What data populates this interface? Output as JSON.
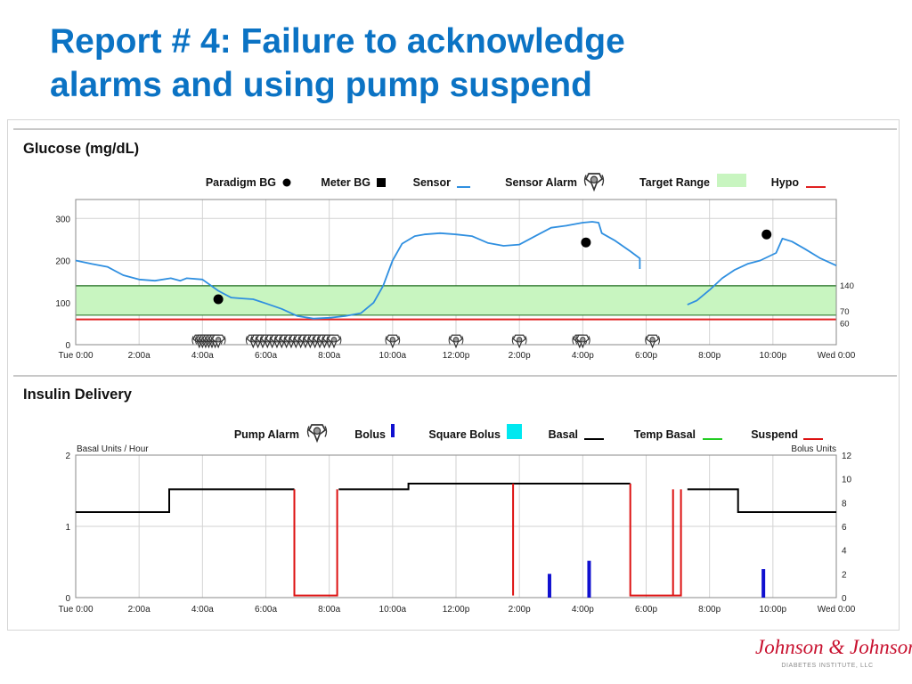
{
  "slide": {
    "title_line1": "Report # 4: Failure to acknowledge",
    "title_line2": "alarms and using pump suspend"
  },
  "logo": {
    "text": "Johnson & Johnson",
    "subtitle": "DIABETES INSTITUTE, LLC"
  },
  "colors": {
    "title": "#0b73c4",
    "sensor": "#2f8fe0",
    "target_range": "#c8f5c0",
    "hypo": "#e02020",
    "bolus": "#1010d0",
    "square_bolus": "#00e8f0",
    "basal": "#000000",
    "temp_basal": "#22cc22",
    "suspend": "#dd1111",
    "logo": "#c8102e"
  },
  "chart_data": [
    {
      "type": "line",
      "title": "Glucose (mg/dL)",
      "legend": {
        "placement": "top",
        "entries": [
          {
            "label": "Paradigm BG",
            "symbol": "circle"
          },
          {
            "label": "Meter BG",
            "symbol": "square"
          },
          {
            "label": "Sensor",
            "symbol": "line"
          },
          {
            "label": "Sensor Alarm",
            "symbol": "alarm-icon"
          },
          {
            "label": "Target Range",
            "symbol": "box"
          },
          {
            "label": "Hypo",
            "symbol": "line"
          }
        ]
      },
      "x_unit": "hours since Tue 0:00",
      "xlim": [
        0,
        24
      ],
      "x_ticks": [
        {
          "x": 0,
          "label": "Tue 0:00"
        },
        {
          "x": 2,
          "label": "2:00a"
        },
        {
          "x": 4,
          "label": "4:00a"
        },
        {
          "x": 6,
          "label": "6:00a"
        },
        {
          "x": 8,
          "label": "8:00a"
        },
        {
          "x": 10,
          "label": "10:00a"
        },
        {
          "x": 12,
          "label": "12:00p"
        },
        {
          "x": 14,
          "label": "2:00p"
        },
        {
          "x": 16,
          "label": "4:00p"
        },
        {
          "x": 18,
          "label": "6:00p"
        },
        {
          "x": 20,
          "label": "8:00p"
        },
        {
          "x": 22,
          "label": "10:00p"
        },
        {
          "x": 24,
          "label": "Wed 0:00"
        }
      ],
      "ylim": [
        0,
        345
      ],
      "y_ticks": [
        0,
        100,
        200,
        300
      ],
      "target_range": [
        70,
        140
      ],
      "hypo_threshold": 60,
      "right_labels": [
        "140",
        "70",
        "60"
      ],
      "grid": true,
      "sensor_segments": [
        [
          [
            0,
            200
          ],
          [
            0.5,
            192
          ],
          [
            1,
            185
          ],
          [
            1.5,
            165
          ],
          [
            2,
            155
          ],
          [
            2.5,
            152
          ],
          [
            3,
            158
          ],
          [
            3.3,
            152
          ],
          [
            3.5,
            158
          ],
          [
            4,
            155
          ],
          [
            4.5,
            128
          ],
          [
            4.9,
            112
          ],
          [
            5.2,
            110
          ],
          [
            5.6,
            108
          ],
          [
            6,
            98
          ],
          [
            6.5,
            85
          ],
          [
            7,
            68
          ],
          [
            7.5,
            62
          ],
          [
            8,
            64
          ],
          [
            8.5,
            68
          ],
          [
            9,
            75
          ],
          [
            9.4,
            100
          ],
          [
            9.7,
            140
          ],
          [
            10,
            200
          ],
          [
            10.3,
            240
          ],
          [
            10.7,
            258
          ],
          [
            11,
            262
          ],
          [
            11.5,
            265
          ],
          [
            12,
            262
          ],
          [
            12.5,
            258
          ],
          [
            13,
            242
          ],
          [
            13.5,
            235
          ],
          [
            14,
            238
          ],
          [
            14.5,
            258
          ],
          [
            15,
            278
          ],
          [
            15.5,
            283
          ],
          [
            16,
            290
          ],
          [
            16.3,
            292
          ],
          [
            16.5,
            290
          ],
          [
            16.6,
            265
          ],
          [
            17,
            248
          ],
          [
            17.5,
            222
          ],
          [
            17.8,
            205
          ],
          [
            17.8,
            180
          ]
        ],
        [
          [
            19.3,
            95
          ],
          [
            19.6,
            105
          ],
          [
            20,
            130
          ],
          [
            20.4,
            158
          ],
          [
            20.8,
            178
          ],
          [
            21.2,
            192
          ],
          [
            21.6,
            200
          ],
          [
            22.1,
            218
          ],
          [
            22.3,
            252
          ],
          [
            22.6,
            245
          ],
          [
            23,
            228
          ],
          [
            23.5,
            205
          ],
          [
            24,
            188
          ]
        ]
      ],
      "paradigm_bg": [
        {
          "x": 4.5,
          "y": 108
        },
        {
          "x": 16.1,
          "y": 243
        },
        {
          "x": 21.8,
          "y": 262
        }
      ],
      "sensor_alarms_x": [
        3.9,
        4.0,
        4.1,
        4.2,
        4.3,
        4.4,
        4.5,
        5.6,
        5.75,
        5.9,
        6.05,
        6.2,
        6.35,
        6.5,
        6.65,
        6.8,
        6.95,
        7.1,
        7.25,
        7.4,
        7.55,
        7.7,
        7.85,
        8.0,
        8.15,
        10.0,
        12.0,
        14.0,
        15.9,
        16.0,
        18.2
      ]
    },
    {
      "type": "line",
      "title": "Insulin Delivery",
      "legend": {
        "placement": "top",
        "entries": [
          {
            "label": "Pump Alarm",
            "symbol": "alarm-icon"
          },
          {
            "label": "Bolus",
            "symbol": "bar"
          },
          {
            "label": "Square Bolus",
            "symbol": "box"
          },
          {
            "label": "Basal",
            "symbol": "line"
          },
          {
            "label": "Temp Basal",
            "symbol": "line"
          },
          {
            "label": "Suspend",
            "symbol": "line"
          }
        ]
      },
      "left_axis_label": "Basal Units / Hour",
      "right_axis_label": "Bolus Units",
      "xlim": [
        0,
        24
      ],
      "x_ticks": [
        {
          "x": 0,
          "label": "Tue 0:00"
        },
        {
          "x": 2,
          "label": "2:00a"
        },
        {
          "x": 4,
          "label": "4:00a"
        },
        {
          "x": 6,
          "label": "6:00a"
        },
        {
          "x": 8,
          "label": "8:00a"
        },
        {
          "x": 10,
          "label": "10:00a"
        },
        {
          "x": 12,
          "label": "12:00p"
        },
        {
          "x": 14,
          "label": "2:00p"
        },
        {
          "x": 16,
          "label": "4:00p"
        },
        {
          "x": 18,
          "label": "6:00p"
        },
        {
          "x": 20,
          "label": "8:00p"
        },
        {
          "x": 22,
          "label": "10:00p"
        },
        {
          "x": 24,
          "label": "Wed 0:00"
        }
      ],
      "ylim_left": [
        0,
        2
      ],
      "y_ticks_left": [
        0,
        1,
        2
      ],
      "ylim_right": [
        0,
        12
      ],
      "y_ticks_right": [
        0,
        2,
        4,
        6,
        8,
        10,
        12
      ],
      "grid": true,
      "basal_segments": [
        [
          [
            0,
            1.2
          ],
          [
            2.95,
            1.2
          ],
          [
            2.95,
            1.52
          ],
          [
            6.9,
            1.52
          ]
        ],
        [
          [
            8.3,
            1.52
          ],
          [
            10.5,
            1.52
          ],
          [
            10.5,
            1.6
          ],
          [
            17.5,
            1.6
          ]
        ],
        [
          [
            19.3,
            1.52
          ],
          [
            20.9,
            1.52
          ],
          [
            20.9,
            1.2
          ],
          [
            24,
            1.2
          ]
        ]
      ],
      "suspend_segments": [
        [
          [
            6.9,
            1.52
          ],
          [
            6.9,
            0.03
          ],
          [
            8.25,
            0.03
          ],
          [
            8.25,
            1.52
          ]
        ],
        [
          [
            13.8,
            1.6
          ],
          [
            13.8,
            0.03
          ]
        ],
        [
          [
            17.5,
            1.6
          ],
          [
            17.5,
            0.03
          ],
          [
            19.1,
            0.03
          ],
          [
            19.1,
            1.52
          ]
        ],
        [
          [
            18.85,
            1.52
          ],
          [
            18.85,
            0.03
          ]
        ]
      ],
      "bolus": [
        {
          "x": 14.95,
          "units": 2.0
        },
        {
          "x": 16.2,
          "units": 3.1
        },
        {
          "x": 21.7,
          "units": 2.4
        }
      ]
    }
  ]
}
